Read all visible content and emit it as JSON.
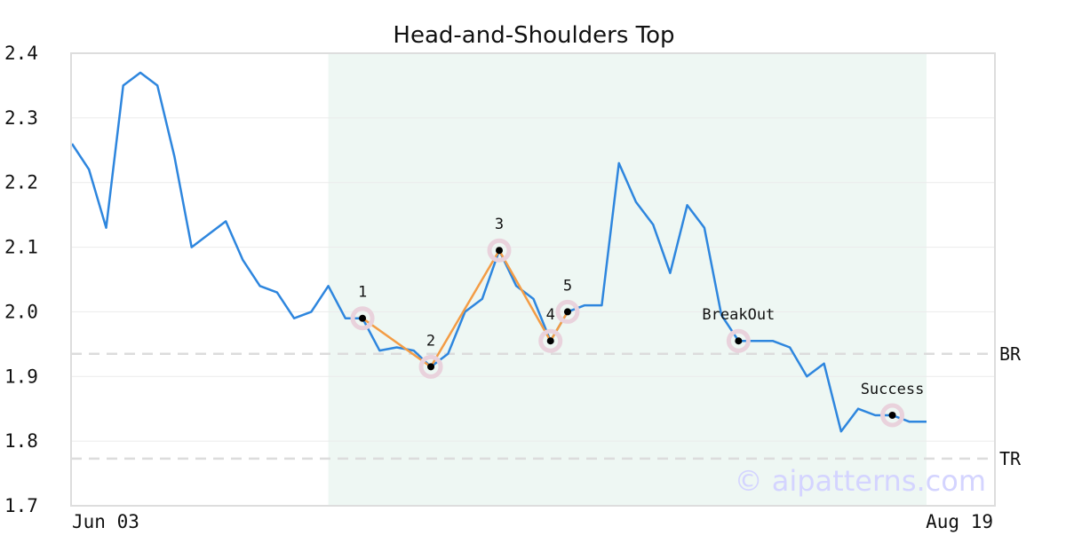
{
  "chart_data": {
    "type": "line",
    "title": "Head-and-Shoulders Top",
    "xlabel": "",
    "ylabel": "",
    "ylim": [
      1.7,
      2.4
    ],
    "yticks": [
      "1.7",
      "1.8",
      "1.9",
      "2.0",
      "2.1",
      "2.2",
      "2.3",
      "2.4"
    ],
    "xtick_labels": {
      "start": "Jun 03",
      "end": "Aug 19"
    },
    "grid": true,
    "series": [
      {
        "color": "#2e86de",
        "values": [
          2.26,
          2.22,
          2.13,
          2.35,
          2.37,
          2.35,
          2.24,
          2.1,
          2.12,
          2.14,
          2.08,
          2.04,
          2.03,
          1.99,
          2.0,
          2.04,
          1.99,
          1.99,
          1.94,
          1.945,
          1.94,
          1.915,
          1.935,
          2.0,
          2.02,
          2.095,
          2.04,
          2.02,
          1.955,
          2.0,
          2.01,
          2.01,
          2.23,
          2.17,
          2.135,
          2.06,
          2.165,
          2.13,
          1.995,
          1.955,
          1.955,
          1.955,
          1.945,
          1.9,
          1.92,
          1.815,
          1.85,
          1.84,
          1.84,
          1.83,
          1.83
        ]
      }
    ],
    "pattern": {
      "highlight_range": [
        15,
        50
      ],
      "highlight_color": "#eef7f3",
      "line_color": "#f39c45",
      "points": [
        {
          "label": "1",
          "index": 17,
          "value": 1.99
        },
        {
          "label": "2",
          "index": 21,
          "value": 1.915
        },
        {
          "label": "3",
          "index": 25,
          "value": 2.095
        },
        {
          "label": "4",
          "index": 28,
          "value": 1.955
        },
        {
          "label": "5",
          "index": 29,
          "value": 2.0
        }
      ],
      "events": [
        {
          "label": "BreakOut",
          "index": 39,
          "value": 1.955
        },
        {
          "label": "Success",
          "index": 48,
          "value": 1.84
        }
      ]
    },
    "levels": [
      {
        "label": "BR",
        "value": 1.935
      },
      {
        "label": "TR",
        "value": 1.773
      }
    ]
  },
  "watermark": "© aipatterns.com"
}
